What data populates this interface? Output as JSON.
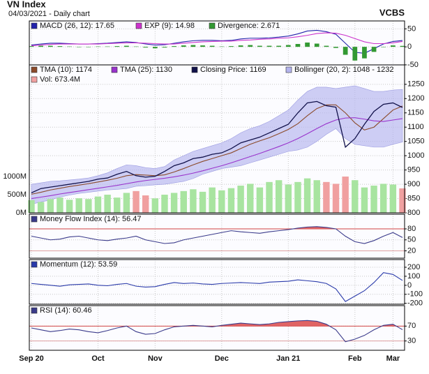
{
  "header": {
    "title": "VN Index",
    "subtitle": "04/03/2021 - Daily chart",
    "source": "VCBS"
  },
  "chart_data": [
    {
      "type": "macd",
      "ylim": [
        -54,
        72
      ],
      "yticks": [
        50,
        0,
        -50
      ],
      "series": [
        {
          "name": "MACD (26, 12): 17.65",
          "color": "#2222aa",
          "style": "line",
          "values": [
            5,
            8,
            10,
            10,
            9,
            8,
            8,
            9,
            10,
            12,
            14,
            12,
            8,
            5,
            6,
            10,
            14,
            17,
            18,
            18,
            17,
            18,
            22,
            24,
            24,
            25,
            27,
            30,
            36,
            44,
            46,
            42,
            35,
            10,
            -15,
            -18,
            -5,
            8,
            15,
            17.65
          ]
        },
        {
          "name": "EXP (9): 14.98",
          "color": "#cc33cc",
          "style": "line",
          "values": [
            3,
            5,
            7,
            8,
            8,
            8,
            8,
            8,
            9,
            10,
            11,
            11,
            10,
            9,
            8,
            8,
            10,
            12,
            14,
            15,
            16,
            16,
            18,
            19,
            21,
            22,
            24,
            25,
            28,
            32,
            37,
            39,
            38,
            32,
            23,
            14,
            9,
            9,
            11,
            14.98
          ]
        },
        {
          "name": "Divergence: 2.671",
          "color": "#339933",
          "style": "bar",
          "values": [
            2,
            3,
            3,
            2,
            1,
            0,
            0,
            1,
            1,
            2,
            3,
            1,
            -2,
            -4,
            -2,
            2,
            4,
            5,
            4,
            3,
            1,
            2,
            4,
            5,
            3,
            3,
            3,
            5,
            8,
            12,
            9,
            3,
            -3,
            -22,
            -38,
            -32,
            -14,
            -1,
            4,
            2.671
          ]
        }
      ]
    },
    {
      "type": "price",
      "ylim": [
        800,
        1318
      ],
      "yticks": [
        800,
        850,
        900,
        950,
        1000,
        1050,
        1100,
        1150,
        1200,
        1250
      ],
      "y2lim": [
        0,
        4080
      ],
      "y2ticks": [
        {
          "value": 0,
          "label": "0M"
        },
        {
          "value": 500,
          "label": "500M"
        },
        {
          "value": 1000,
          "label": "1000M"
        }
      ],
      "series": [
        {
          "name": "Bollinger (20, 2): 1048 - 1232",
          "color": "#b4b4ee",
          "style": "band",
          "values": [
            900,
            905,
            910,
            912,
            915,
            918,
            922,
            930,
            940,
            955,
            968,
            965,
            958,
            955,
            962,
            985,
            1000,
            1015,
            1025,
            1035,
            1045,
            1060,
            1080,
            1095,
            1105,
            1120,
            1140,
            1160,
            1195,
            1225,
            1240,
            1240,
            1235,
            1240,
            1245,
            1235,
            1225,
            1225,
            1230,
            1232
          ],
          "lower": [
            830,
            838,
            845,
            855,
            862,
            868,
            872,
            876,
            880,
            882,
            885,
            893,
            895,
            898,
            900,
            905,
            910,
            920,
            935,
            945,
            955,
            960,
            965,
            975,
            985,
            995,
            1005,
            1015,
            1020,
            1030,
            1050,
            1075,
            1095,
            1060,
            1040,
            1035,
            1030,
            1030,
            1040,
            1048
          ]
        },
        {
          "name": "Vol: 673.4M",
          "color": "#f0a0a0",
          "up_color": "#a8e4a0",
          "style": "volume",
          "axis": "y2",
          "values": [
            350,
            300,
            380,
            420,
            360,
            400,
            380,
            450,
            500,
            420,
            550,
            600,
            480,
            400,
            500,
            550,
            600,
            650,
            580,
            700,
            620,
            680,
            750,
            800,
            700,
            850,
            900,
            780,
            850,
            950,
            900,
            850,
            800,
            1000,
            900,
            700,
            750,
            800,
            780,
            673.4
          ]
        },
        {
          "name": "TMA (10): 1174",
          "color": "#8b4a2a",
          "style": "line",
          "values": [
            865,
            872,
            880,
            886,
            892,
            897,
            902,
            908,
            914,
            921,
            930,
            934,
            932,
            930,
            933,
            943,
            955,
            968,
            980,
            990,
            1000,
            1010,
            1025,
            1040,
            1052,
            1063,
            1077,
            1092,
            1112,
            1140,
            1165,
            1178,
            1178,
            1150,
            1115,
            1090,
            1100,
            1130,
            1160,
            1174
          ]
        },
        {
          "name": "TMA (25): 1130",
          "color": "#9933cc",
          "style": "line",
          "values": [
            850,
            855,
            860,
            866,
            871,
            876,
            881,
            886,
            891,
            896,
            902,
            908,
            913,
            917,
            921,
            926,
            932,
            939,
            947,
            956,
            965,
            975,
            986,
            997,
            1008,
            1020,
            1032,
            1045,
            1060,
            1077,
            1095,
            1112,
            1125,
            1132,
            1133,
            1128,
            1122,
            1120,
            1125,
            1130
          ]
        },
        {
          "name": "Closing Price: 1169",
          "color": "#11114a",
          "style": "line",
          "updown": true,
          "values": [
            870,
            885,
            890,
            895,
            900,
            905,
            910,
            918,
            922,
            935,
            945,
            930,
            925,
            928,
            945,
            965,
            975,
            990,
            995,
            1005,
            1010,
            1025,
            1045,
            1055,
            1065,
            1080,
            1095,
            1110,
            1150,
            1185,
            1190,
            1175,
            1170,
            1030,
            1060,
            1110,
            1155,
            1180,
            1185,
            1169
          ]
        }
      ]
    },
    {
      "type": "oscillator",
      "ylim": [
        0,
        120
      ],
      "yticks": [
        80,
        50,
        20
      ],
      "upper": 80,
      "lower": 20,
      "fill_color": "#e06464",
      "series": [
        {
          "name": "Money Flow Index (14): 56.47",
          "color": "#3a3a8a",
          "style": "line",
          "values": [
            60,
            55,
            50,
            52,
            58,
            60,
            55,
            50,
            48,
            52,
            55,
            60,
            50,
            45,
            40,
            42,
            50,
            55,
            60,
            65,
            70,
            75,
            72,
            70,
            68,
            72,
            75,
            78,
            82,
            85,
            86,
            84,
            80,
            60,
            45,
            40,
            48,
            60,
            70,
            56.47
          ]
        }
      ]
    },
    {
      "type": "oscillator",
      "ylim": [
        -210,
        285
      ],
      "yticks": [
        200,
        100,
        0,
        -100,
        -200
      ],
      "series": [
        {
          "name": "Momentum (12): 53.59",
          "color": "#2a3aaa",
          "style": "line",
          "values": [
            20,
            10,
            0,
            -10,
            5,
            10,
            15,
            0,
            -5,
            10,
            20,
            -10,
            -20,
            -15,
            10,
            30,
            20,
            25,
            15,
            10,
            20,
            25,
            30,
            25,
            20,
            35,
            40,
            45,
            60,
            50,
            40,
            20,
            -40,
            -180,
            -120,
            -60,
            30,
            140,
            120,
            53.59
          ]
        }
      ]
    },
    {
      "type": "oscillator",
      "ylim": [
        5,
        125
      ],
      "yticks": [
        70,
        30
      ],
      "upper": 70,
      "lower": 30,
      "fill_color": "#e06464",
      "categories": [
        "Sep 20",
        null,
        null,
        null,
        null,
        null,
        null,
        "Oct",
        null,
        null,
        null,
        null,
        null,
        "Nov",
        null,
        null,
        null,
        null,
        null,
        null,
        "Dec",
        null,
        null,
        null,
        null,
        null,
        null,
        "Jan 21",
        null,
        null,
        null,
        null,
        null,
        null,
        "Feb",
        null,
        null,
        null,
        "Mar",
        null
      ],
      "series": [
        {
          "name": "RSI (14): 60.46",
          "color": "#3a3a8a",
          "style": "line",
          "values": [
            65,
            60,
            55,
            58,
            62,
            60,
            55,
            52,
            58,
            65,
            70,
            55,
            48,
            50,
            60,
            68,
            70,
            72,
            70,
            68,
            72,
            75,
            78,
            76,
            74,
            76,
            80,
            82,
            84,
            85,
            83,
            75,
            60,
            28,
            35,
            45,
            60,
            72,
            75,
            60.46
          ]
        }
      ]
    }
  ]
}
